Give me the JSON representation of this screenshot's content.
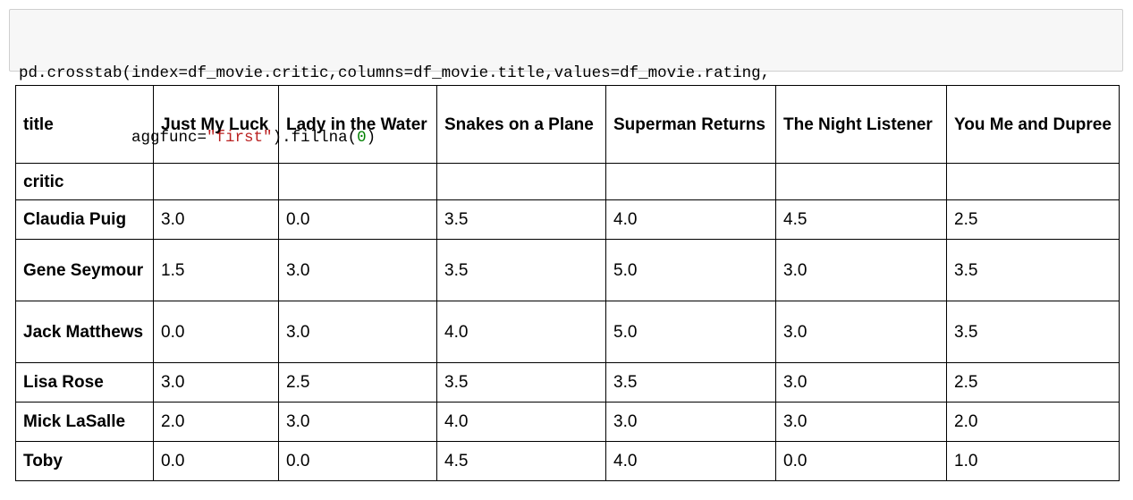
{
  "code_cell": {
    "line1": "pd.crosstab(index=df_movie.critic,columns=df_movie.title,values=df_movie.rating,",
    "line2_prefix": "            aggfunc=",
    "line2_string": "\"first\"",
    "line2_middle": ").fillna(",
    "line2_number": "0",
    "line2_suffix": ")"
  },
  "table": {
    "columns_name": "title",
    "index_name": "critic",
    "columns": [
      "Just My Luck",
      "Lady in the Water",
      "Snakes on a Plane",
      "Superman Returns",
      "The Night Listener",
      "You Me and Dupree"
    ],
    "rows": [
      {
        "critic": "Claudia Puig",
        "values": [
          "3.0",
          "0.0",
          "3.5",
          "4.0",
          "4.5",
          "2.5"
        ]
      },
      {
        "critic": "Gene Seymour",
        "values": [
          "1.5",
          "3.0",
          "3.5",
          "5.0",
          "3.0",
          "3.5"
        ]
      },
      {
        "critic": "Jack Matthews",
        "values": [
          "0.0",
          "3.0",
          "4.0",
          "5.0",
          "3.0",
          "3.5"
        ]
      },
      {
        "critic": "Lisa Rose",
        "values": [
          "3.0",
          "2.5",
          "3.5",
          "3.5",
          "3.0",
          "2.5"
        ]
      },
      {
        "critic": "Mick LaSalle",
        "values": [
          "2.0",
          "3.0",
          "4.0",
          "3.0",
          "3.0",
          "2.0"
        ]
      },
      {
        "critic": "Toby",
        "values": [
          "0.0",
          "0.0",
          "4.5",
          "4.0",
          "0.0",
          "1.0"
        ]
      }
    ]
  },
  "colors": {
    "code_background": "#f7f7f7",
    "code_border": "#cfcfcf",
    "string_token": "#ba2121",
    "number_token": "#008000"
  }
}
